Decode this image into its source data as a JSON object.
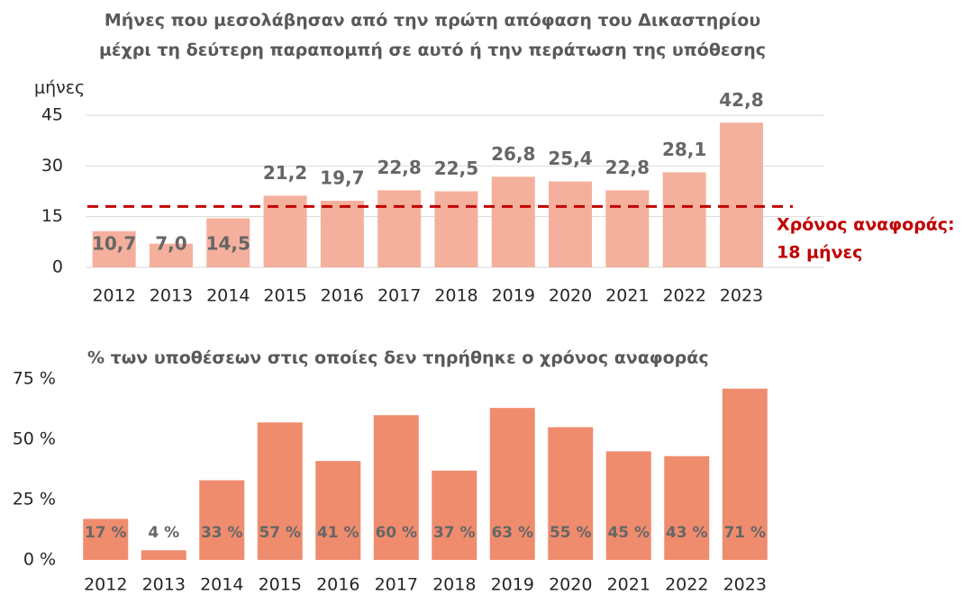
{
  "chart_data": [
    {
      "type": "bar",
      "title": [
        "Μήνες που μεσολάβησαν από την πρώτη απόφαση του Δικαστηρίου",
        "μέχρι τη δεύτερη παραπομπή σε αυτό ή την περάτωση της υπόθεσης"
      ],
      "y_label": "μήνες",
      "categories": [
        "2012",
        "2013",
        "2014",
        "2015",
        "2016",
        "2017",
        "2018",
        "2019",
        "2020",
        "2021",
        "2022",
        "2023"
      ],
      "values": [
        10.7,
        7.0,
        14.5,
        21.2,
        19.7,
        22.8,
        22.5,
        26.8,
        25.4,
        22.8,
        28.1,
        42.8
      ],
      "value_labels": [
        "10,7",
        "7,0",
        "14,5",
        "21,2",
        "19,7",
        "22,8",
        "22,5",
        "26,8",
        "25,4",
        "22,8",
        "28,1",
        "42,8"
      ],
      "color": "#f4b09c",
      "ylim": [
        0,
        45
      ],
      "yticks": [
        0,
        15,
        30,
        45
      ],
      "grid": true,
      "reference_line": {
        "value": 18,
        "label": [
          "Χρόνος αναφοράς:",
          "18 μήνες"
        ],
        "color": "#c00000"
      }
    },
    {
      "type": "bar",
      "title": [
        "% των υποθέσεων στις οποίες δεν τηρήθηκε ο χρόνος αναφοράς"
      ],
      "categories": [
        "2012",
        "2013",
        "2014",
        "2015",
        "2016",
        "2017",
        "2018",
        "2019",
        "2020",
        "2021",
        "2022",
        "2023"
      ],
      "values": [
        17,
        4,
        33,
        57,
        41,
        60,
        37,
        63,
        55,
        45,
        43,
        71
      ],
      "value_labels": [
        "17 %",
        "4 %",
        "33 %",
        "57 %",
        "41 %",
        "60 %",
        "37 %",
        "63 %",
        "55 %",
        "45 %",
        "43 %",
        "71 %"
      ],
      "color": "#ef8c6e",
      "ylim": [
        0,
        75
      ],
      "yticks": [
        {
          "value": 0,
          "label": "0 %"
        },
        {
          "value": 25,
          "label": "25 %"
        },
        {
          "value": 50,
          "label": "50 %"
        },
        {
          "value": 75,
          "label": "75 %"
        }
      ],
      "grid": false
    }
  ]
}
